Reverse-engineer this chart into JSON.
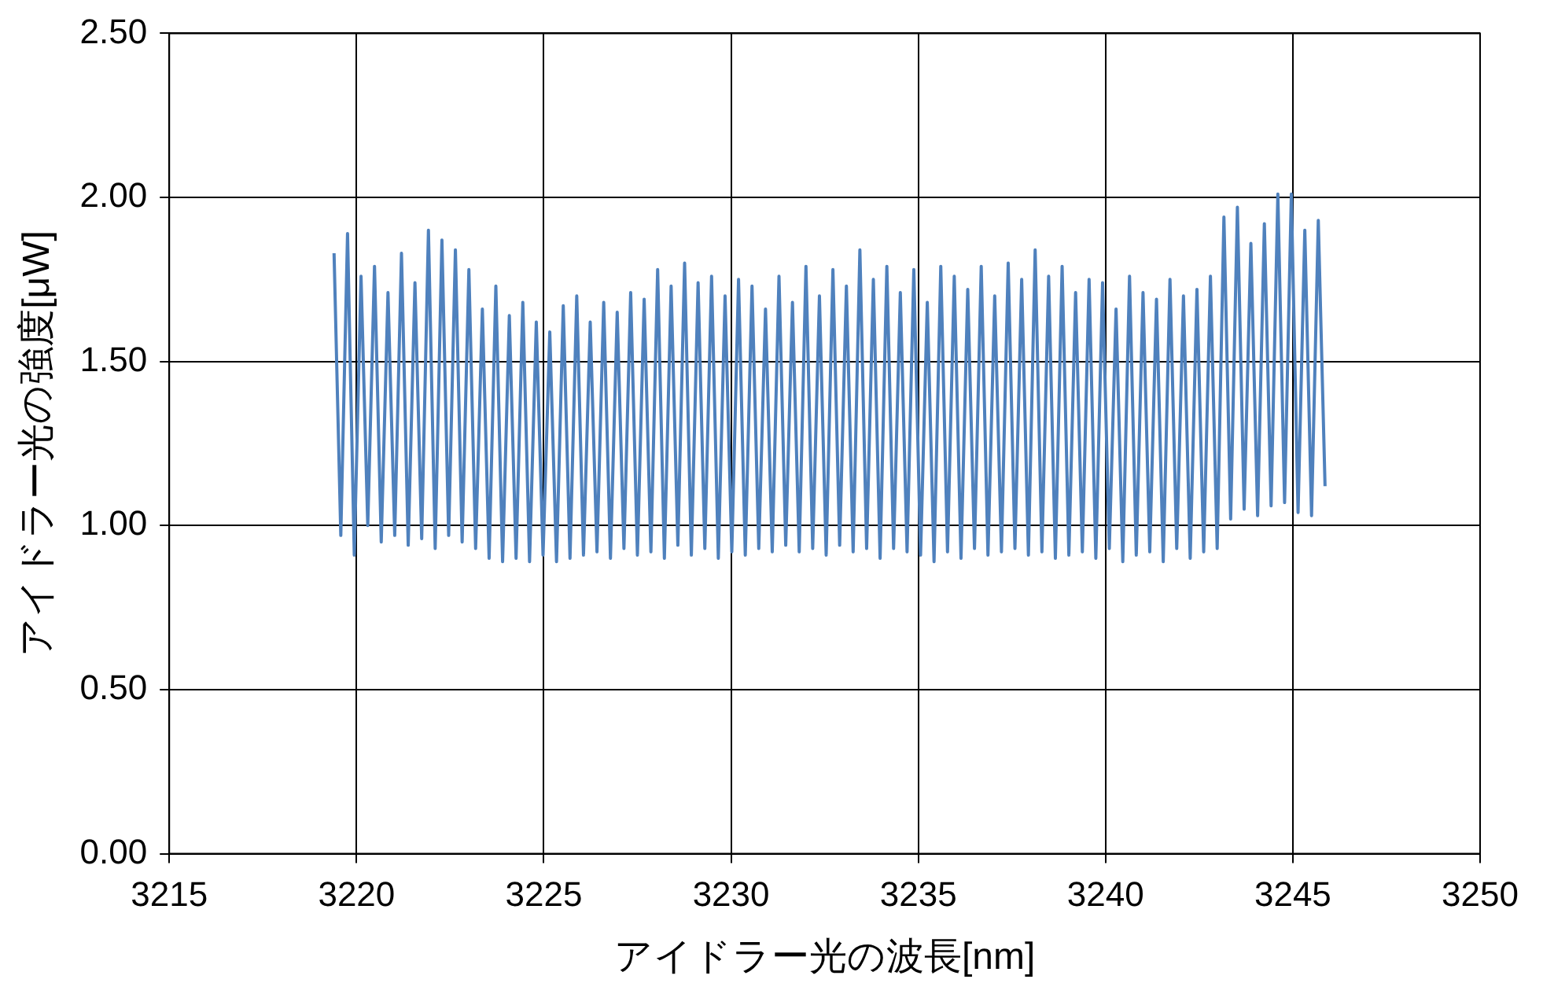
{
  "chart_data": {
    "type": "line",
    "xlabel": "アイドラー光の波長[nm]",
    "ylabel": "アイドラー光の強度[μW]",
    "xlim": [
      3215,
      3250
    ],
    "xticks": [
      3215,
      3220,
      3225,
      3230,
      3235,
      3240,
      3245,
      3250
    ],
    "ylim": [
      0,
      2.5
    ],
    "yticks": [
      {
        "value": 0,
        "label": "0.00"
      },
      {
        "value": 0.5,
        "label": "0.50"
      },
      {
        "value": 1,
        "label": "1.00"
      },
      {
        "value": 1.5,
        "label": "1.50"
      },
      {
        "value": 2,
        "label": "2.00"
      },
      {
        "value": 2.5,
        "label": "2.50"
      }
    ],
    "grid": true,
    "legend": false,
    "marker": "none",
    "line_style": "solid",
    "series": [
      {
        "color": "#4f81bd",
        "x": [
          3219.4,
          3219.58,
          3219.76,
          3219.94,
          3220.12,
          3220.3,
          3220.48,
          3220.66,
          3220.84,
          3221.02,
          3221.2,
          3221.38,
          3221.56,
          3221.74,
          3221.92,
          3222.1,
          3222.28,
          3222.46,
          3222.64,
          3222.82,
          3223.0,
          3223.18,
          3223.36,
          3223.54,
          3223.72,
          3223.9,
          3224.08,
          3224.26,
          3224.44,
          3224.62,
          3224.8,
          3224.98,
          3225.16,
          3225.34,
          3225.52,
          3225.7,
          3225.88,
          3226.06,
          3226.24,
          3226.42,
          3226.6,
          3226.78,
          3226.96,
          3227.14,
          3227.32,
          3227.5,
          3227.68,
          3227.86,
          3228.04,
          3228.22,
          3228.4,
          3228.58,
          3228.76,
          3228.94,
          3229.12,
          3229.3,
          3229.48,
          3229.66,
          3229.84,
          3230.02,
          3230.2,
          3230.38,
          3230.56,
          3230.74,
          3230.92,
          3231.1,
          3231.28,
          3231.46,
          3231.64,
          3231.82,
          3232.0,
          3232.18,
          3232.36,
          3232.54,
          3232.72,
          3232.9,
          3233.08,
          3233.26,
          3233.44,
          3233.62,
          3233.8,
          3233.98,
          3234.16,
          3234.34,
          3234.52,
          3234.7,
          3234.88,
          3235.06,
          3235.24,
          3235.42,
          3235.6,
          3235.78,
          3235.96,
          3236.14,
          3236.32,
          3236.5,
          3236.68,
          3236.86,
          3237.04,
          3237.22,
          3237.4,
          3237.58,
          3237.76,
          3237.94,
          3238.12,
          3238.3,
          3238.48,
          3238.66,
          3238.84,
          3239.02,
          3239.2,
          3239.38,
          3239.56,
          3239.74,
          3239.92,
          3240.1,
          3240.28,
          3240.46,
          3240.64,
          3240.82,
          3241.0,
          3241.18,
          3241.36,
          3241.54,
          3241.72,
          3241.9,
          3242.08,
          3242.26,
          3242.44,
          3242.62,
          3242.8,
          3242.98,
          3243.16,
          3243.34,
          3243.52,
          3243.7,
          3243.88,
          3244.06,
          3244.24,
          3244.42,
          3244.6,
          3244.78,
          3244.96,
          3245.14,
          3245.32,
          3245.5,
          3245.68,
          3245.86
        ],
        "values": [
          1.83,
          0.97,
          1.89,
          0.91,
          1.76,
          1.0,
          1.79,
          0.95,
          1.71,
          0.97,
          1.83,
          0.94,
          1.74,
          0.96,
          1.9,
          0.93,
          1.87,
          0.97,
          1.84,
          0.95,
          1.78,
          0.93,
          1.66,
          0.9,
          1.73,
          0.89,
          1.64,
          0.9,
          1.68,
          0.89,
          1.62,
          0.91,
          1.59,
          0.89,
          1.67,
          0.9,
          1.7,
          0.91,
          1.62,
          0.92,
          1.68,
          0.9,
          1.65,
          0.93,
          1.71,
          0.91,
          1.69,
          0.92,
          1.78,
          0.9,
          1.73,
          0.94,
          1.8,
          0.91,
          1.74,
          0.93,
          1.76,
          0.9,
          1.7,
          0.92,
          1.75,
          0.91,
          1.73,
          0.93,
          1.66,
          0.92,
          1.76,
          0.94,
          1.68,
          0.92,
          1.79,
          0.93,
          1.7,
          0.91,
          1.78,
          0.94,
          1.73,
          0.92,
          1.84,
          0.93,
          1.75,
          0.9,
          1.79,
          0.93,
          1.71,
          0.92,
          1.78,
          0.91,
          1.68,
          0.89,
          1.79,
          0.92,
          1.76,
          0.9,
          1.72,
          0.93,
          1.79,
          0.91,
          1.7,
          0.92,
          1.8,
          0.93,
          1.75,
          0.91,
          1.84,
          0.92,
          1.76,
          0.9,
          1.79,
          0.91,
          1.71,
          0.92,
          1.75,
          0.9,
          1.74,
          0.93,
          1.66,
          0.89,
          1.76,
          0.91,
          1.71,
          0.92,
          1.69,
          0.89,
          1.75,
          0.93,
          1.7,
          0.9,
          1.72,
          0.92,
          1.76,
          0.93,
          1.94,
          1.02,
          1.97,
          1.05,
          1.86,
          1.03,
          1.92,
          1.06,
          2.01,
          1.07,
          2.01,
          1.04,
          1.9,
          1.03,
          1.93,
          1.12
        ]
      }
    ]
  }
}
